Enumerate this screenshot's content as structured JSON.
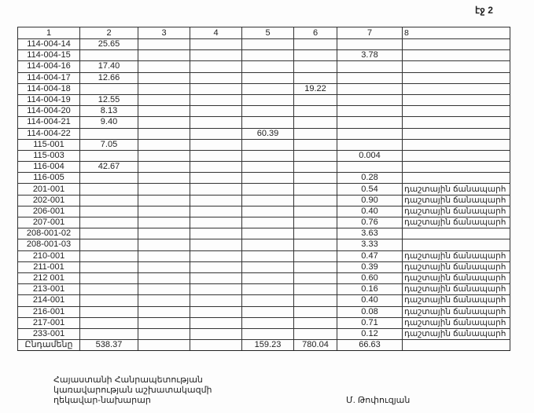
{
  "page_label": "էջ 2",
  "table": {
    "headers": [
      "1",
      "2",
      "3",
      "4",
      "5",
      "6",
      "7",
      "8"
    ],
    "rows": [
      [
        "114-004-14",
        "25.65",
        "",
        "",
        "",
        "",
        "",
        ""
      ],
      [
        "114-004-15",
        "",
        "",
        "",
        "",
        "",
        "3.78",
        ""
      ],
      [
        "114-004-16",
        "17.40",
        "",
        "",
        "",
        "",
        "",
        ""
      ],
      [
        "114-004-17",
        "12.66",
        "",
        "",
        "",
        "",
        "",
        ""
      ],
      [
        "114-004-18",
        "",
        "",
        "",
        "",
        "19.22",
        "",
        ""
      ],
      [
        "114-004-19",
        "12.55",
        "",
        "",
        "",
        "",
        "",
        ""
      ],
      [
        "114-004-20",
        "8.13",
        "",
        "",
        "",
        "",
        "",
        ""
      ],
      [
        "114-004-21",
        "9.40",
        "",
        "",
        "",
        "",
        "",
        ""
      ],
      [
        "114-004-22",
        "",
        "",
        "",
        "60.39",
        "",
        "",
        ""
      ],
      [
        "115-001",
        "7.05",
        "",
        "",
        "",
        "",
        "",
        ""
      ],
      [
        "115-003",
        "",
        "",
        "",
        "",
        "",
        "0.004",
        ""
      ],
      [
        "116-004",
        "42.67",
        "",
        "",
        "",
        "",
        "",
        ""
      ],
      [
        "116-005",
        "",
        "",
        "",
        "",
        "",
        "0.28",
        ""
      ],
      [
        "201-001",
        "",
        "",
        "",
        "",
        "",
        "0.54",
        "դաշտային ճանապարհ"
      ],
      [
        "202-001",
        "",
        "",
        "",
        "",
        "",
        "0.90",
        "դաշտային ճանապարհ"
      ],
      [
        "206-001",
        "",
        "",
        "",
        "",
        "",
        "0.40",
        "դաշտային ճանապարհ"
      ],
      [
        "207-001",
        "",
        "",
        "",
        "",
        "",
        "0.76",
        "դաշտային ճանապարհ"
      ],
      [
        "208-001-02",
        "",
        "",
        "",
        "",
        "",
        "3.63",
        ""
      ],
      [
        "208-001-03",
        "",
        "",
        "",
        "",
        "",
        "3.33",
        ""
      ],
      [
        "210-001",
        "",
        "",
        "",
        "",
        "",
        "0.47",
        "դաշտային ճանապարհ"
      ],
      [
        "211-001",
        "",
        "",
        "",
        "",
        "",
        "0.39",
        "դաշտային ճանապարհ"
      ],
      [
        "212 001",
        "",
        "",
        "",
        "",
        "",
        "0.60",
        "դաշտային ճանապարհ"
      ],
      [
        "213-001",
        "",
        "",
        "",
        "",
        "",
        "0.16",
        "դաշտային ճանապարհ"
      ],
      [
        "214-001",
        "",
        "",
        "",
        "",
        "",
        "0.40",
        "դաշտային ճանապարհ"
      ],
      [
        "216-001",
        "",
        "",
        "",
        "",
        "",
        "0.08",
        "դաշտային ճանապարհ"
      ],
      [
        "217-001",
        "",
        "",
        "",
        "",
        "",
        "0.71",
        "դաշտային ճանապարհ"
      ],
      [
        "233-001",
        "",
        "",
        "",
        "",
        "",
        "0.12",
        "դաշտային ճանապարհ"
      ]
    ],
    "total": [
      "Ընդամենը",
      "538.37",
      "",
      "",
      "159.23",
      "780.04",
      "66.63",
      ""
    ]
  },
  "footer": {
    "line1": "Հայաստանի Հանրապետության",
    "line2": "կառավարության աշխատակազմի",
    "line3": "ղեկավար-նախարար",
    "signatory": "Մ. Թոփուզյան"
  }
}
